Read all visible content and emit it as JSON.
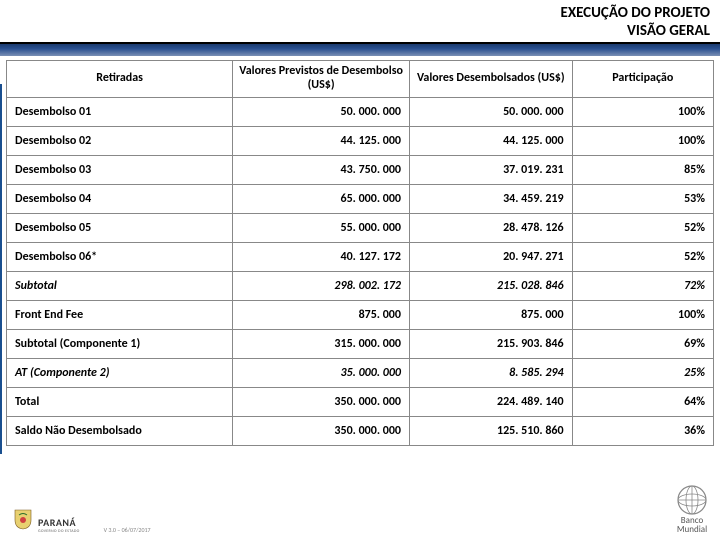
{
  "header": {
    "line1": "EXECUÇÃO DO PROJETO",
    "line2": "VISÃO GERAL"
  },
  "table": {
    "columns": [
      "Retiradas",
      "Valores Previstos de Desembolso (US$)",
      "Valores Desembolsados (US$)",
      "Participação"
    ],
    "rows": [
      {
        "label": "Desembolso 01",
        "previsto": "50. 000. 000",
        "desembolsado": "50. 000. 000",
        "part": "100%",
        "italic": false
      },
      {
        "label": "Desembolso 02",
        "previsto": "44. 125. 000",
        "desembolsado": "44. 125. 000",
        "part": "100%",
        "italic": false
      },
      {
        "label": "Desembolso 03",
        "previsto": "43. 750. 000",
        "desembolsado": "37. 019. 231",
        "part": "85%",
        "italic": false
      },
      {
        "label": "Desembolso 04",
        "previsto": "65. 000. 000",
        "desembolsado": "34. 459. 219",
        "part": "53%",
        "italic": false
      },
      {
        "label": "Desembolso 05",
        "previsto": "55. 000. 000",
        "desembolsado": "28. 478. 126",
        "part": "52%",
        "italic": false
      },
      {
        "label": "Desembolso 06*",
        "previsto": "40. 127. 172",
        "desembolsado": "20. 947. 271",
        "part": "52%",
        "italic": false
      },
      {
        "label": "Subtotal",
        "previsto": "298. 002. 172",
        "desembolsado": "215. 028. 846",
        "part": "72%",
        "italic": true
      },
      {
        "label": "Front End Fee",
        "previsto": "875. 000",
        "desembolsado": "875. 000",
        "part": "100%",
        "italic": false
      },
      {
        "label": "Subtotal (Componente 1)",
        "previsto": "315. 000. 000",
        "desembolsado": "215. 903. 846",
        "part": "69%",
        "italic": false
      },
      {
        "label": "AT (Componente 2)",
        "previsto": "35. 000. 000",
        "desembolsado": "8. 585. 294",
        "part": "25%",
        "italic": true
      },
      {
        "label": "Total",
        "previsto": "350. 000. 000",
        "desembolsado": "224. 489. 140",
        "part": "64%",
        "italic": false
      },
      {
        "label": "Saldo Não Desembolsado",
        "previsto": "350. 000. 000",
        "desembolsado": "125. 510. 860",
        "part": "36%",
        "italic": false
      }
    ]
  },
  "footer": {
    "parana": "PARANÁ",
    "parana_sub": "GOVERNO DO ESTADO",
    "version": "V 3.0 – 06/07/2017",
    "wb_line1": "Banco",
    "wb_line2": "Mundial"
  },
  "colors": {
    "blue_dark": "#1a3a6e",
    "blue_mid": "#2a5090",
    "border": "#888888"
  }
}
